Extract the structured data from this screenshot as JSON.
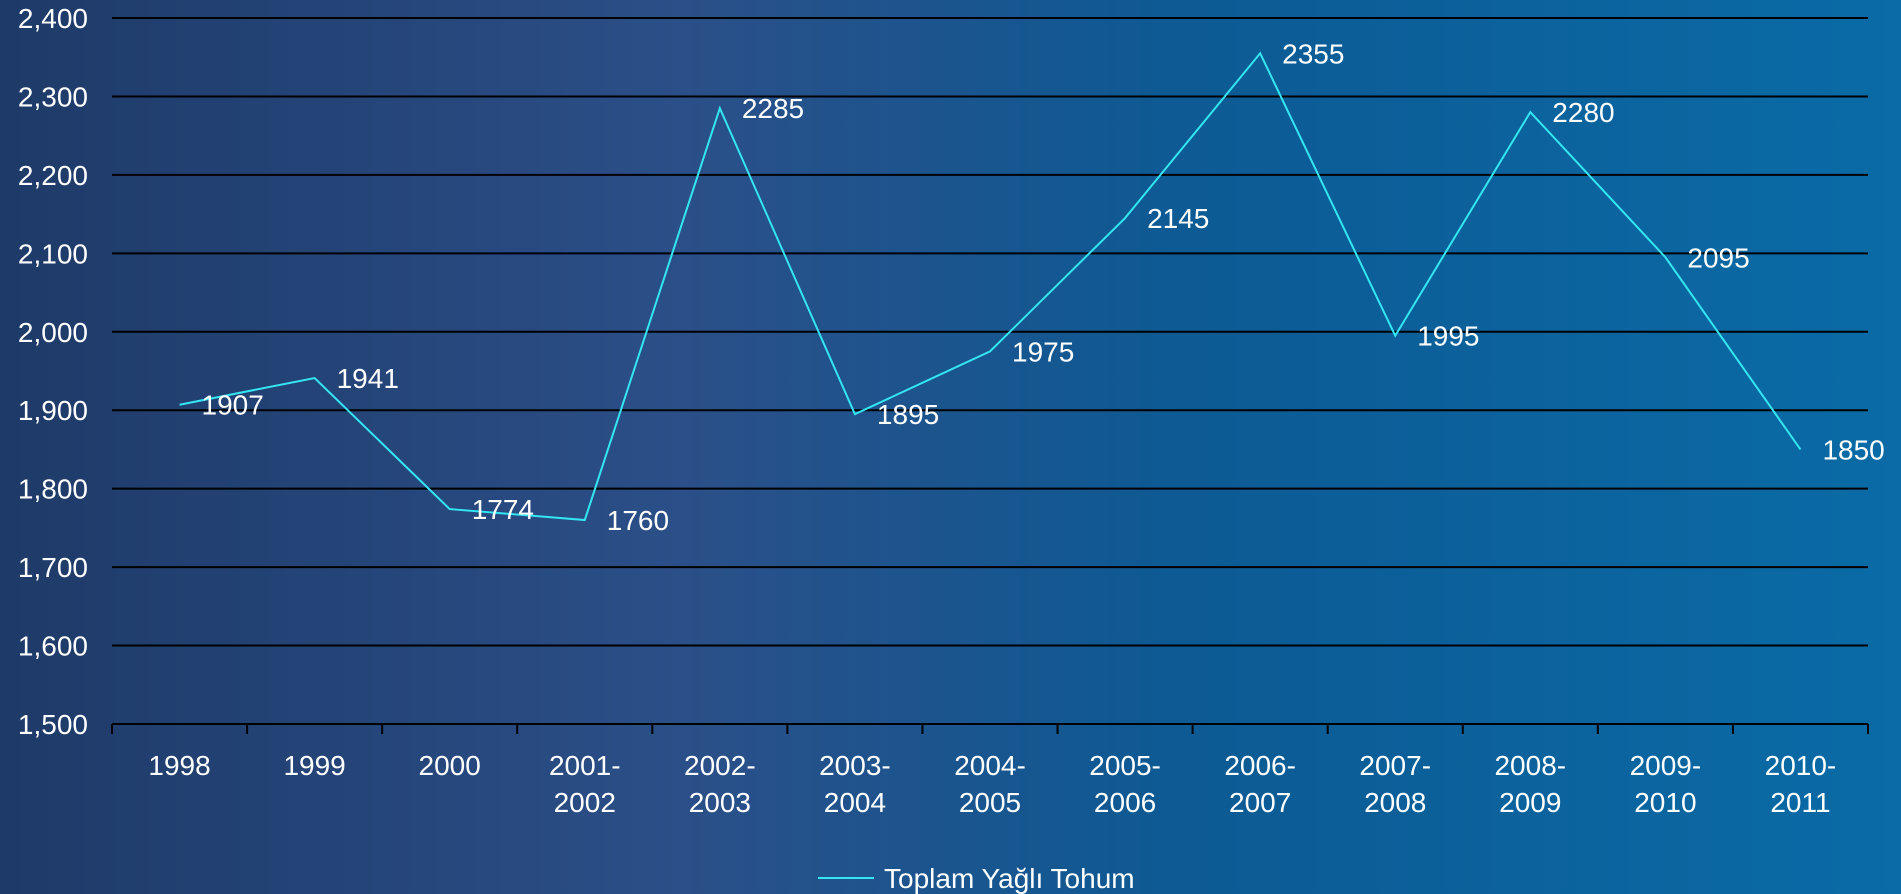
{
  "chart_data": {
    "type": "line",
    "categories": [
      "1998",
      "1999",
      "2000",
      "2001-\n2002",
      "2002-\n2003",
      "2003-\n2004",
      "2004-\n2005",
      "2005-\n2006",
      "2006-\n2007",
      "2007-\n2008",
      "2008-\n2009",
      "2009-\n2010",
      "2010-\n2011"
    ],
    "series": [
      {
        "name": "Toplam Yağlı Tohum",
        "values": [
          1907,
          1941,
          1774,
          1760,
          2285,
          1895,
          1975,
          2145,
          2355,
          1995,
          2280,
          2095,
          1850
        ],
        "data_labels": [
          "1907",
          "1941",
          "1774",
          "1760",
          "2285",
          "1895",
          "1975",
          "2145",
          "2355",
          "1995",
          "2280",
          "2095",
          "1850"
        ],
        "color": "#33e6f2"
      }
    ],
    "ylim": [
      1500,
      2400
    ],
    "yticks": [
      1500,
      1600,
      1700,
      1800,
      1900,
      2000,
      2100,
      2200,
      2300,
      2400
    ],
    "ytick_labels": [
      "1,500",
      "1,600",
      "1,700",
      "1,800",
      "1,900",
      "2,000",
      "2,100",
      "2,200",
      "2,300",
      "2,400"
    ],
    "grid": true,
    "legend_position": "bottom"
  },
  "colors": {
    "line": "#33e6f2",
    "grid": "#000000",
    "text": "#ffffff"
  }
}
